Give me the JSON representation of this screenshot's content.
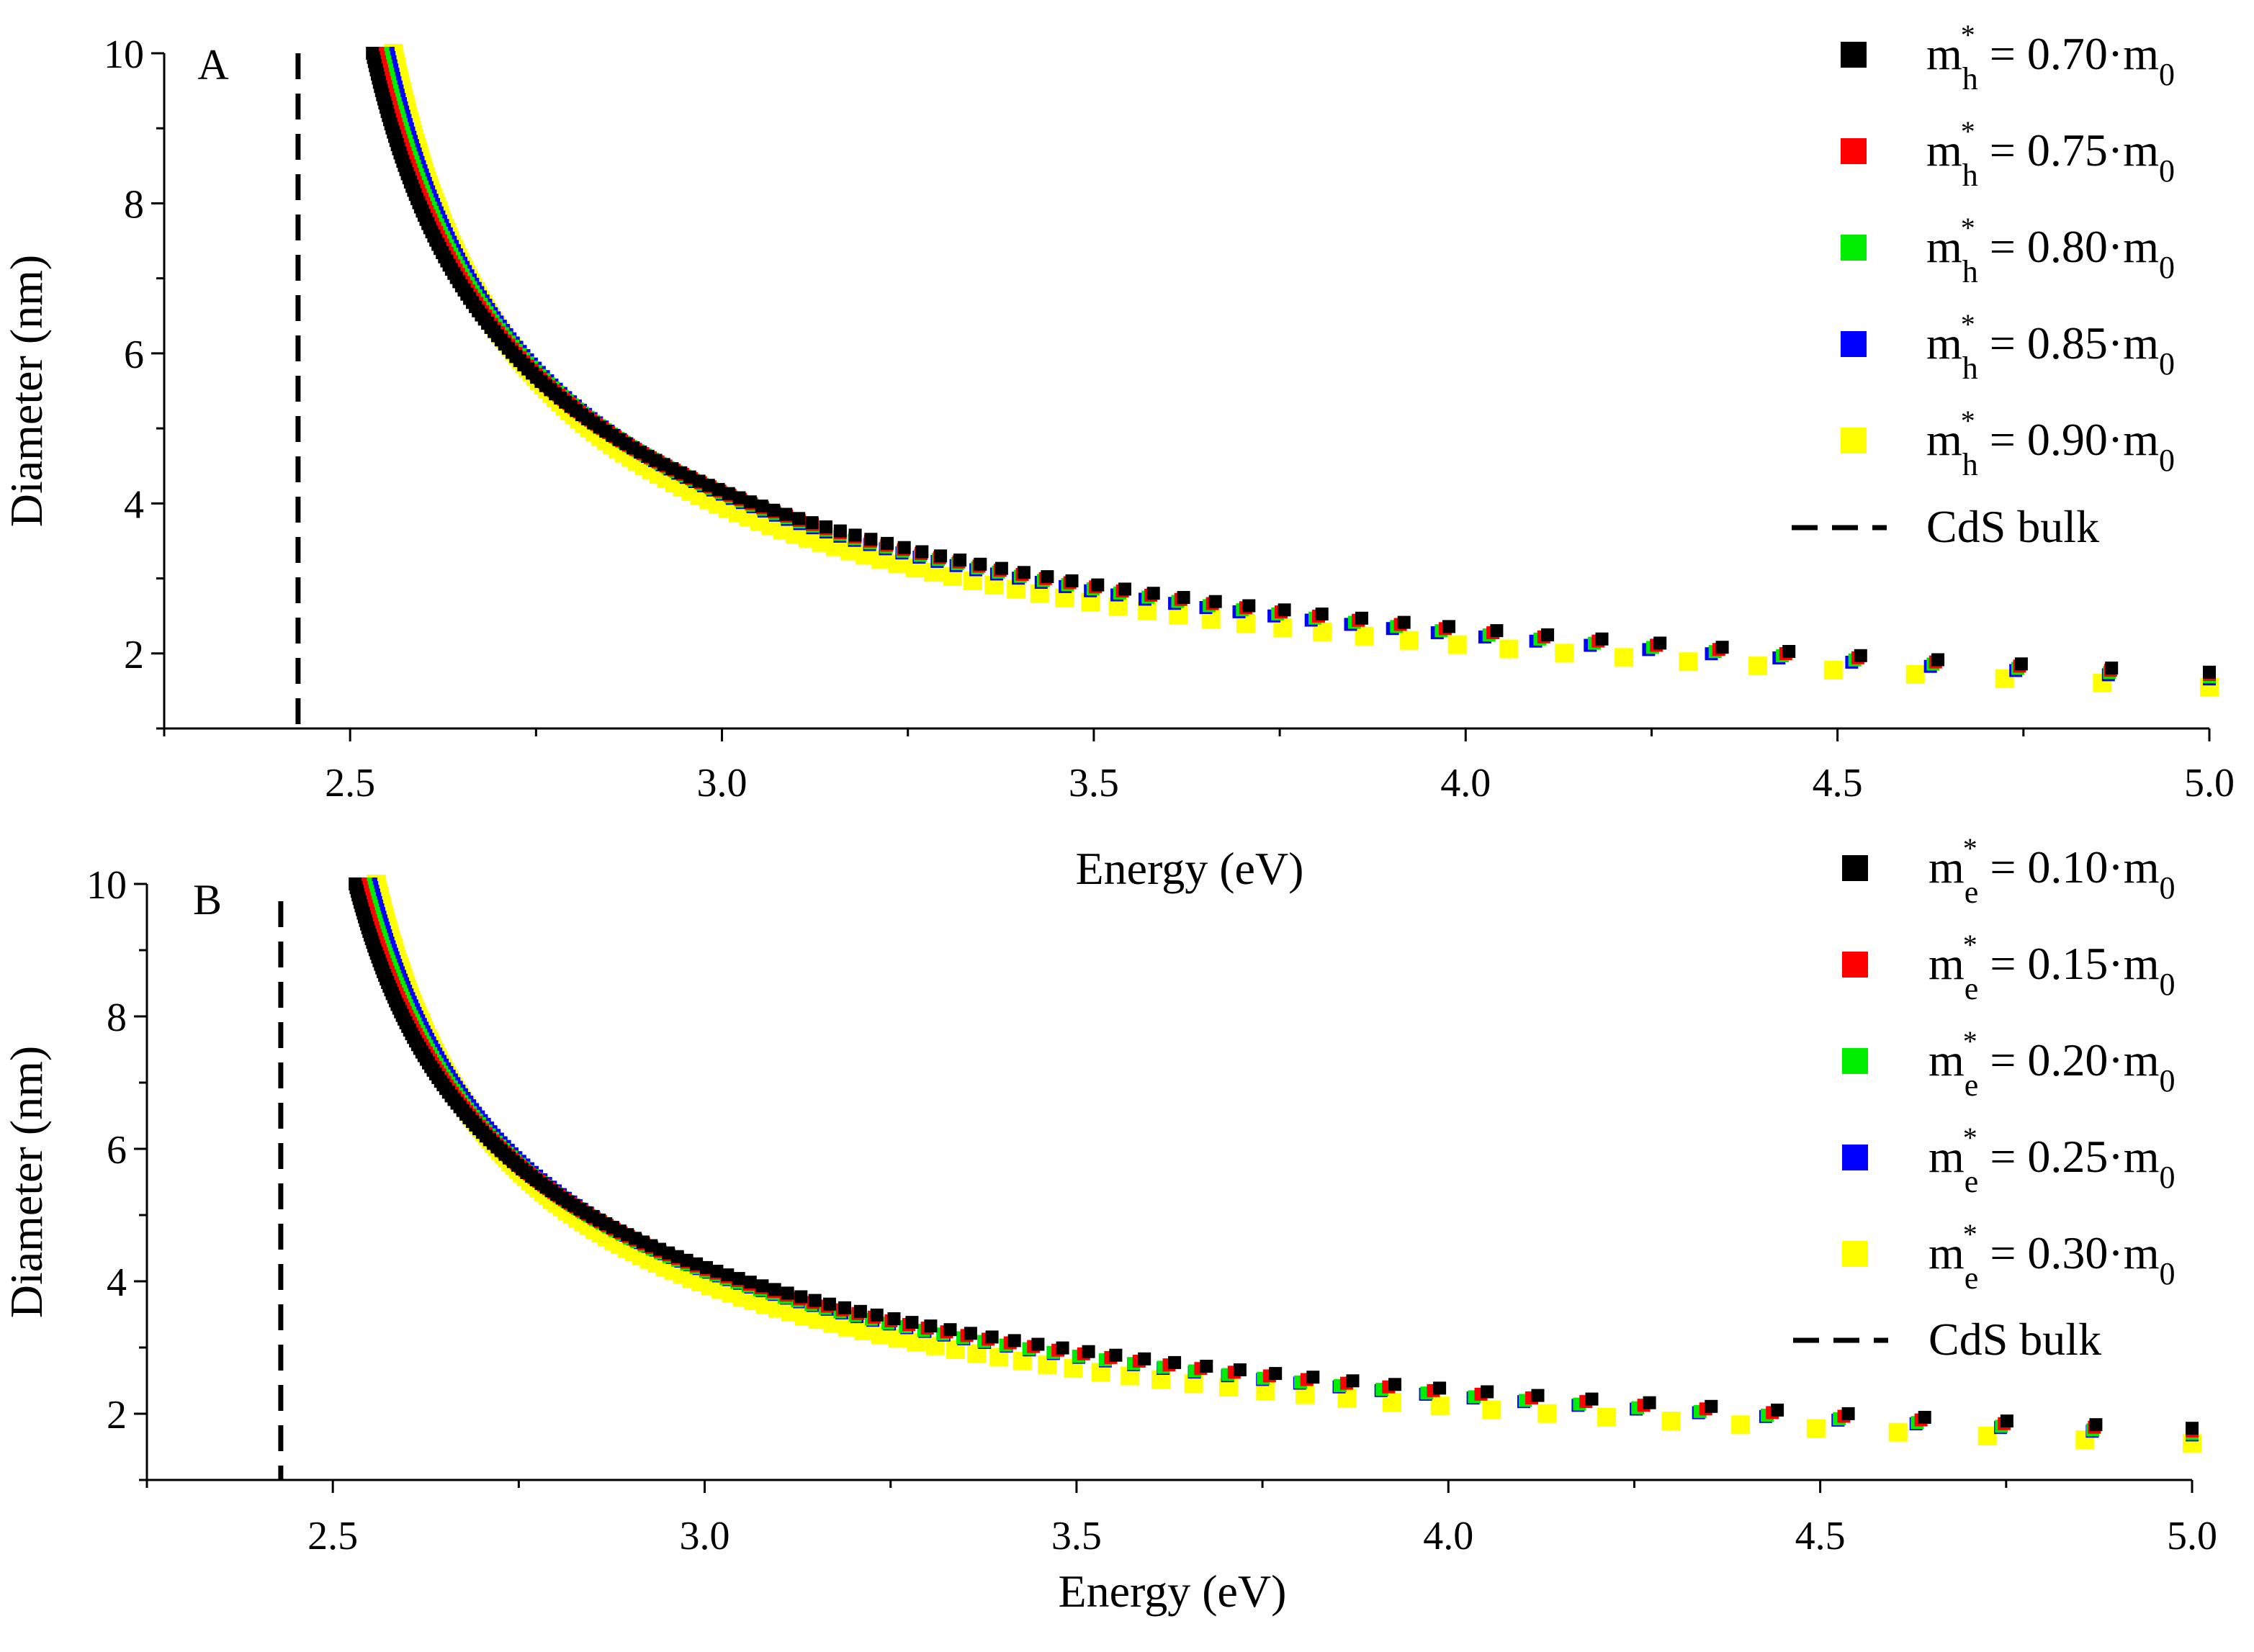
{
  "chart_data": [
    {
      "type": "scatter",
      "panel_label": "A",
      "xlabel": "Energy (eV)",
      "ylabel": "Diameter (nm)",
      "xlim": [
        2.25,
        5.0
      ],
      "ylim": [
        1.0,
        10.0
      ],
      "x_ticks": [
        "2.5",
        "3.0",
        "3.5",
        "4.0",
        "4.5",
        "5.0"
      ],
      "y_ticks": [
        "2",
        "4",
        "6",
        "8",
        "10"
      ],
      "bulk_line": {
        "label": "CdS bulk",
        "energy": 2.43,
        "style": "dashed",
        "color": "#000000"
      },
      "curve_model": {
        "x_start_at_d10": 2.53,
        "x_step_per_series": 0.007
      },
      "series": [
        {
          "name": "m_h* = 0.70·m0",
          "symbol": "m",
          "sub": "h",
          "value": "0.70",
          "color": "#000000",
          "d_at_5eV": 1.75
        },
        {
          "name": "m_h* = 0.75·m0",
          "symbol": "m",
          "sub": "h",
          "value": "0.75",
          "color": "#ff0000",
          "d_at_5eV": 1.72
        },
        {
          "name": "m_h* = 0.80·m0",
          "symbol": "m",
          "sub": "h",
          "value": "0.80",
          "color": "#00ee00",
          "d_at_5eV": 1.69
        },
        {
          "name": "m_h* = 0.85·m0",
          "symbol": "m",
          "sub": "h",
          "value": "0.85",
          "color": "#0000ff",
          "d_at_5eV": 1.66
        },
        {
          "name": "m_h* = 0.90·m0",
          "symbol": "m",
          "sub": "h",
          "value": "0.90",
          "color": "#ffff00",
          "d_at_5eV": 1.55
        }
      ],
      "legend_position": "top-right"
    },
    {
      "type": "scatter",
      "panel_label": "B",
      "xlabel": "Energy (eV)",
      "ylabel": "Diameter (nm)",
      "xlim": [
        2.25,
        5.0
      ],
      "ylim": [
        1.0,
        10.0
      ],
      "x_ticks": [
        "2.5",
        "3.0",
        "3.5",
        "4.0",
        "4.5",
        "5.0"
      ],
      "y_ticks": [
        "2",
        "4",
        "6",
        "8",
        "10"
      ],
      "bulk_line": {
        "label": "CdS bulk",
        "energy": 2.43,
        "style": "dashed",
        "color": "#000000"
      },
      "curve_model": {
        "x_start_at_d10": 2.53,
        "x_step_per_series": 0.007
      },
      "series": [
        {
          "name": "m_e* = 0.10·m0",
          "symbol": "m",
          "sub": "e",
          "value": "0.10",
          "color": "#000000",
          "d_at_5eV": 1.78
        },
        {
          "name": "m_e* = 0.15·m0",
          "symbol": "m",
          "sub": "e",
          "value": "0.15",
          "color": "#ff0000",
          "d_at_5eV": 1.74
        },
        {
          "name": "m_e* = 0.20·m0",
          "symbol": "m",
          "sub": "e",
          "value": "0.20",
          "color": "#00ee00",
          "d_at_5eV": 1.7
        },
        {
          "name": "m_e* = 0.25·m0",
          "symbol": "m",
          "sub": "e",
          "value": "0.25",
          "color": "#0000ff",
          "d_at_5eV": 1.68
        },
        {
          "name": "m_e* = 0.30·m0",
          "symbol": "m",
          "sub": "e",
          "value": "0.30",
          "color": "#ffff00",
          "d_at_5eV": 1.55
        }
      ],
      "legend_position": "top-right"
    }
  ]
}
